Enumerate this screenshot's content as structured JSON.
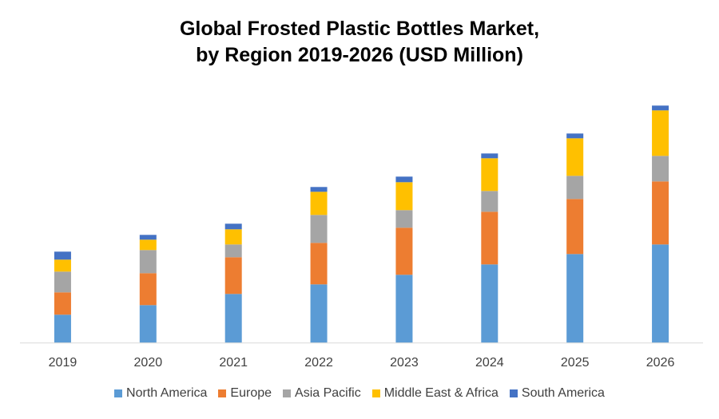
{
  "chart_data": {
    "type": "bar",
    "stacked": true,
    "title_lines": [
      "Global Frosted Plastic Bottles Market,",
      "by Region 2019-2026 (USD Million)"
    ],
    "xlabel": "",
    "ylabel": "",
    "categories": [
      "2019",
      "2020",
      "2021",
      "2022",
      "2023",
      "2024",
      "2025",
      "2026"
    ],
    "series": [
      {
        "name": "North America",
        "color": "#5B9BD5",
        "values": [
          35,
          47,
          61,
          73,
          85,
          98,
          111,
          123
        ]
      },
      {
        "name": "Europe",
        "color": "#ED7D31",
        "values": [
          28,
          40,
          46,
          52,
          59,
          66,
          69,
          79
        ]
      },
      {
        "name": "Asia Pacific",
        "color": "#A5A5A5",
        "values": [
          26,
          29,
          16,
          35,
          22,
          26,
          29,
          32
        ]
      },
      {
        "name": "Middle East & Africa",
        "color": "#FFC000",
        "values": [
          15,
          13,
          19,
          29,
          35,
          41,
          47,
          57
        ]
      },
      {
        "name": "South America",
        "color": "#4472C4",
        "values": [
          10,
          6,
          7,
          6,
          7,
          6,
          6,
          6
        ]
      }
    ],
    "ylim": [
      0,
      300
    ],
    "y_axis_shown": false,
    "grid": false,
    "legend_position": "bottom"
  }
}
